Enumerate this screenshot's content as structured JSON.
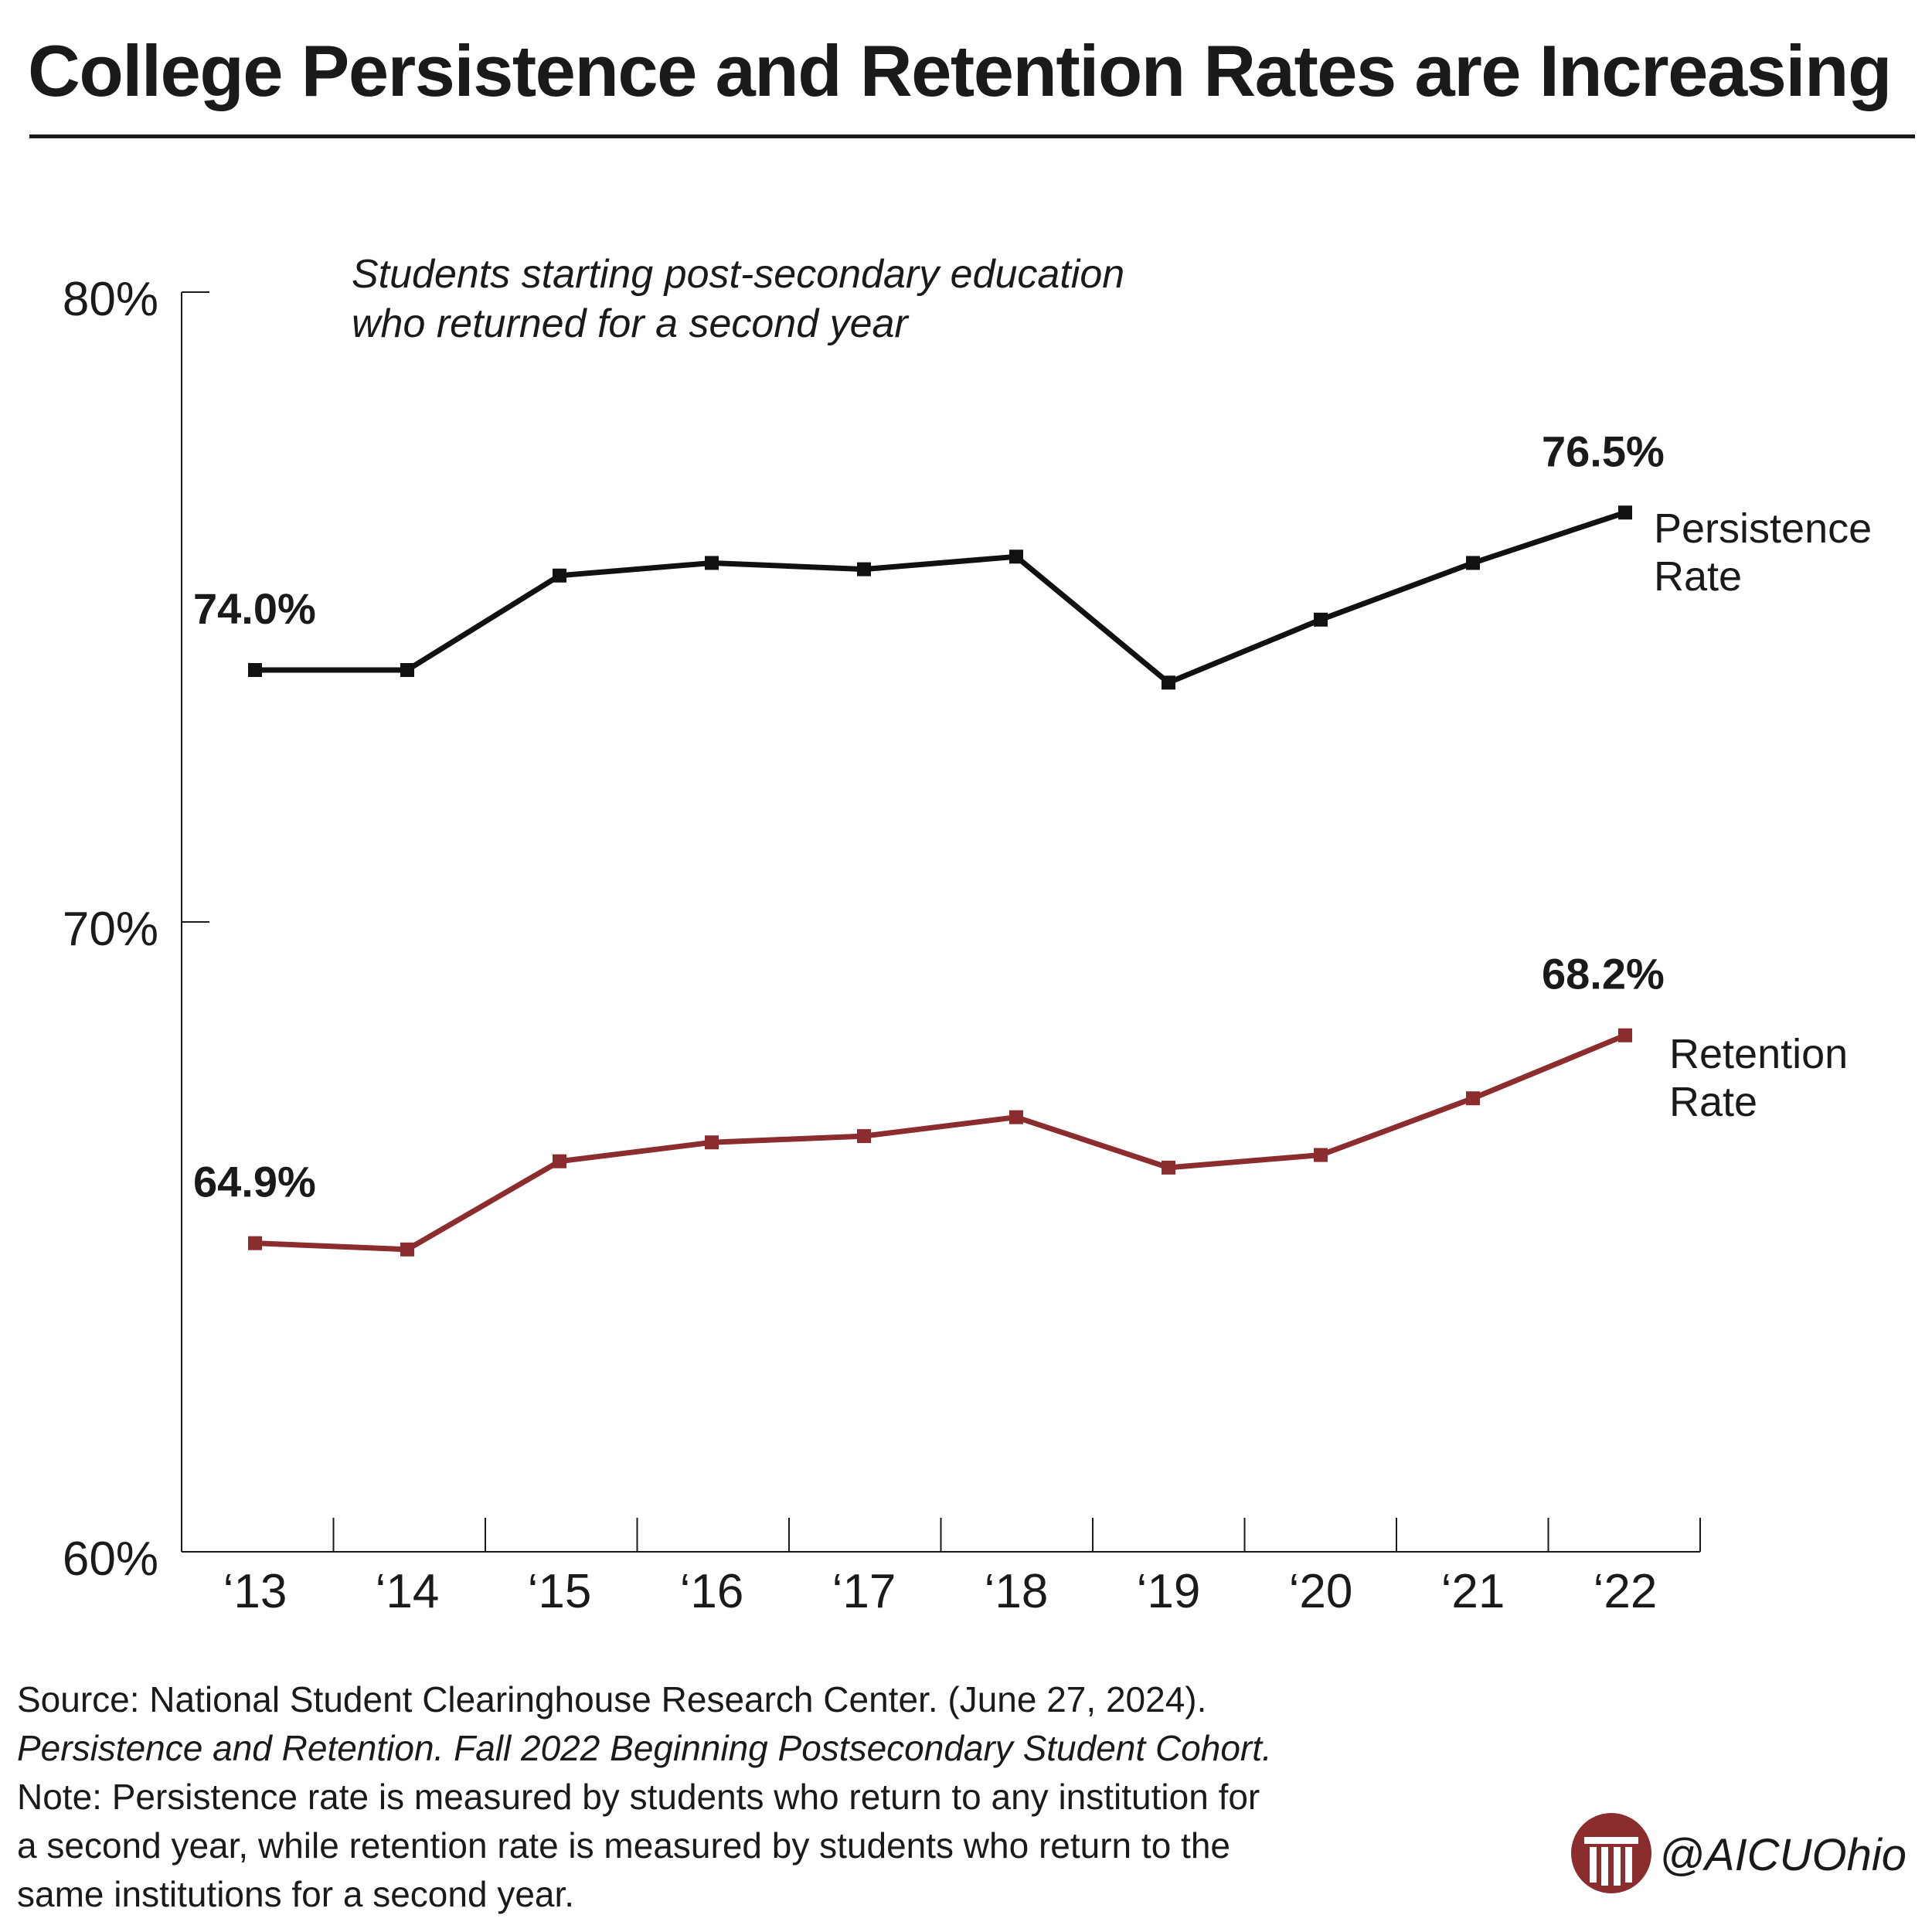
{
  "title": "College Persistence and Retention Rates are Increasing",
  "colors": {
    "persistence": "#111111",
    "retention": "#8b2c2f",
    "axis": "#1a1a1a",
    "brand": "#8b2c2f"
  },
  "chart_data": {
    "type": "line",
    "annotation": [
      "Students starting post-secondary education",
      "who returned for a second year"
    ],
    "categories": [
      "‘13",
      "‘14",
      "‘15",
      "‘16",
      "‘17",
      "‘18",
      "‘19",
      "‘20",
      "‘21",
      "‘22"
    ],
    "ylim": [
      60,
      80
    ],
    "yticks": [
      {
        "value": 80,
        "label": "80%"
      },
      {
        "value": 70,
        "label": "70%"
      },
      {
        "value": 60,
        "label": "60%"
      }
    ],
    "grid": false,
    "series": [
      {
        "key": "persistence",
        "name": [
          "Persistence",
          "Rate"
        ],
        "values": [
          74.0,
          74.0,
          75.5,
          75.7,
          75.6,
          75.8,
          73.8,
          74.8,
          75.7,
          76.5
        ],
        "data_labels": [
          {
            "index": 0,
            "text": "74.0%"
          },
          {
            "index": 9,
            "text": "76.5%"
          }
        ]
      },
      {
        "key": "retention",
        "name": [
          "Retention",
          "Rate"
        ],
        "values": [
          64.9,
          64.8,
          66.2,
          66.5,
          66.6,
          66.9,
          66.1,
          66.3,
          67.2,
          68.2
        ],
        "data_labels": [
          {
            "index": 0,
            "text": "64.9%"
          },
          {
            "index": 9,
            "text": "68.2%"
          }
        ]
      }
    ]
  },
  "source": {
    "line1": "Source: National Student Clearinghouse Research Center. (June 27, 2024).",
    "line2": "Persistence and Retention. Fall 2022 Beginning Postsecondary Student Cohort.",
    "line3": "Note: Persistence rate is measured by students who return to any institution for",
    "line4": "a second year, while retention rate is measured by students who return to the",
    "line5": "same institutions for a second year."
  },
  "brand": {
    "handle": "@AICUOhio",
    "logo_icon": "column-logo-icon"
  }
}
